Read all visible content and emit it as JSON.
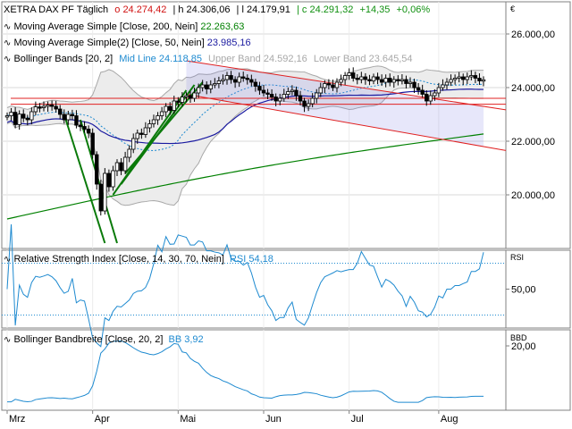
{
  "chart_data": {
    "type": "candlestick",
    "instrument": "XETRA DAX PF",
    "period": "Täglich",
    "currency_symbol": "€",
    "ohlc": {
      "o_label": "o",
      "o": "24.274,42",
      "h_label": "h",
      "h": "24.306,06",
      "l_label": "l",
      "l": "24.179,91",
      "c_label": "c",
      "c": "24.291,32",
      "change": "+14,35",
      "change_pct": "+0,06%"
    },
    "indicators": [
      {
        "name": "Moving Average Simple",
        "params": "[Close, 200, Nein]",
        "value": "22.263,63",
        "color": "#008000"
      },
      {
        "name": "Moving Average Simple(2)",
        "params": "[Close, 50, Nein]",
        "value": "23.985,16",
        "color": "#1a1aa0"
      },
      {
        "name": "Bollinger Bands",
        "params": "[20, 2]",
        "mid_label": "Mid Line",
        "mid": "24.118,85",
        "upper_label": "Upper Band",
        "upper": "24.592,16",
        "lower_label": "Lower Band",
        "lower": "23.645,54",
        "mid_color": "#1e8ad0",
        "band_color": "#a8a8a8"
      }
    ],
    "price_axis": {
      "ticks": [
        "26.000,00",
        "24.000,00",
        "22.000,00",
        "20.000,00"
      ],
      "values": [
        26000,
        24000,
        22000,
        20000
      ],
      "ylim": [
        18000,
        27200
      ]
    },
    "x_axis": {
      "labels": [
        "Mrz",
        "Apr",
        "Mai",
        "Jun",
        "Jul",
        "Aug"
      ],
      "start_index": [
        0,
        21,
        42,
        63,
        84,
        106
      ]
    },
    "close": [
      22950,
      23080,
      22620,
      23010,
      22860,
      22800,
      23100,
      23280,
      23260,
      23300,
      23350,
      23300,
      23200,
      23000,
      22800,
      23000,
      22950,
      22600,
      22550,
      22450,
      22300,
      21500,
      20400,
      19400,
      20800,
      20300,
      20900,
      21200,
      20900,
      21400,
      21700,
      22100,
      22300,
      22250,
      22500,
      22650,
      22800,
      22950,
      23100,
      23300,
      23150,
      23500,
      23450,
      23650,
      23700,
      23600,
      23800,
      24000,
      24100,
      23950,
      24100,
      24150,
      24250,
      24300,
      24450,
      24300,
      24200,
      24400,
      24350,
      24300,
      24200,
      24050,
      23900,
      23800,
      23750,
      23650,
      23500,
      23600,
      23750,
      23850,
      23900,
      23700,
      23500,
      23300,
      23400,
      23600,
      23800,
      24000,
      24150,
      24100,
      24000,
      24200,
      24300,
      24450,
      24550,
      24350,
      24300,
      24400,
      24300,
      24250,
      24400,
      24300,
      24200,
      24350,
      24200,
      24300,
      24250,
      24300,
      24150,
      24200,
      24000,
      23900,
      23750,
      23500,
      23700,
      23800,
      24000,
      24100,
      24200,
      24300,
      24350,
      24400,
      24300,
      24400,
      24450,
      24350,
      24250,
      24291.32
    ],
    "sma50_endpoints": [
      [
        0,
        21600
      ],
      [
        117,
        23985.16
      ]
    ],
    "sma200_endpoints": [
      [
        0,
        19100
      ],
      [
        117,
        22263.63
      ]
    ],
    "annotation_lines": [
      {
        "type": "channel",
        "color": "#e02020",
        "points": [
          [
            44,
            25000
          ],
          [
            117,
            23300
          ]
        ]
      },
      {
        "type": "channel",
        "color": "#e02020",
        "points": [
          [
            44,
            23750
          ],
          [
            117,
            21800
          ]
        ]
      },
      {
        "type": "horizontal",
        "color": "#e02020",
        "value": 23380
      },
      {
        "type": "horizontal",
        "color": "#e02020",
        "value": 23600
      }
    ],
    "rsi": {
      "title": "Relative Strength Index",
      "params": "[Close, 14, 30, 70, Nein]",
      "label": "RSI",
      "value": "54,18",
      "tick": "50,00",
      "axis_label": "RSI",
      "upper_level": 70,
      "lower_level": 30
    },
    "bb_width": {
      "title": "Bollinger Bandbreite",
      "params": "[Close, 20, 2]",
      "label": "BB",
      "value": "3,92",
      "tick": "20,00",
      "axis_label": "BBD"
    }
  }
}
